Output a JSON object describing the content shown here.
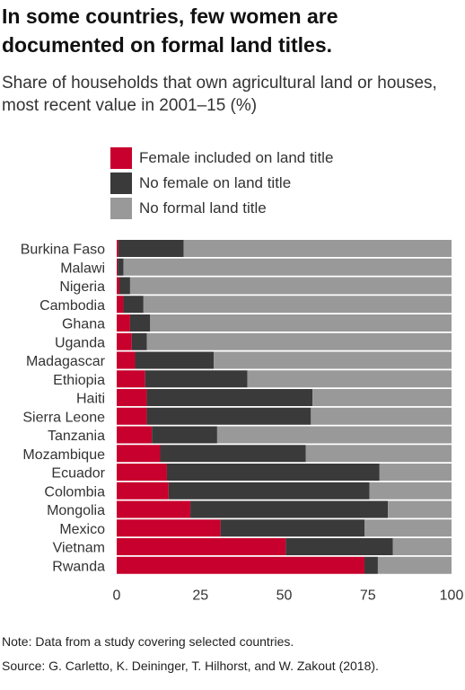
{
  "title": "In some countries, few women are documented on formal land titles.",
  "subtitle": "Share of households that own agricultural land or houses, most recent value in 2001–15 (%)",
  "note": "Note: Data from a study covering selected countries.",
  "source": "Source: G. Carletto, K. Deininger, T. Hilhorst, and W. Zakout (2018).",
  "colors": {
    "female": "#c8002d",
    "no_female": "#3a3a3a",
    "no_title": "#999999"
  },
  "chart_data": {
    "type": "bar",
    "orientation": "horizontal",
    "stacked": true,
    "categories": [
      "Burkina Faso",
      "Malawi",
      "Nigeria",
      "Cambodia",
      "Ghana",
      "Uganda",
      "Madagascar",
      "Ethiopia",
      "Haiti",
      "Sierra Leone",
      "Tanzania",
      "Mozambique",
      "Ecuador",
      "Colombia",
      "Mongolia",
      "Mexico",
      "Vietnam",
      "Rwanda"
    ],
    "series": [
      {
        "name": "Female included on land title",
        "color": "#c8002d",
        "values": [
          0.5,
          0.3,
          0.8,
          2,
          4,
          4.5,
          5.5,
          8.5,
          9,
          9,
          10.5,
          13,
          15,
          15.5,
          22,
          31,
          50.5,
          74
        ]
      },
      {
        "name": "No female on land title",
        "color": "#3a3a3a",
        "values": [
          19.5,
          1.7,
          3.2,
          6,
          6,
          4.5,
          23.5,
          30.5,
          49.5,
          49,
          19.5,
          43.5,
          63.5,
          60,
          59,
          43,
          32,
          4
        ]
      },
      {
        "name": "No formal land title",
        "color": "#999999",
        "values": [
          80,
          98,
          96,
          92,
          90,
          91,
          71,
          61,
          41.5,
          42,
          70,
          43.5,
          21.5,
          24.5,
          19,
          26,
          17.5,
          22
        ]
      }
    ],
    "x_ticks": [
      0,
      25,
      50,
      75,
      100
    ],
    "xlim": [
      0,
      100
    ],
    "legend_position": "top",
    "grid": false
  }
}
